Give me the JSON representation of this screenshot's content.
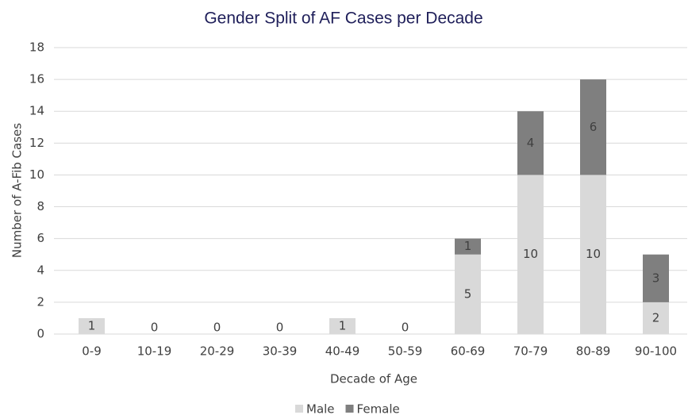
{
  "chart_data": {
    "type": "stacked_bar",
    "title": "Gender Split of AF Cases per Decade",
    "x_label": "Decade of Age",
    "y_label": "Number of A-Fib Cases",
    "categories": [
      "0-9",
      "10-19",
      "20-29",
      "30-39",
      "40-49",
      "50-59",
      "60-69",
      "70-79",
      "80-89",
      "90-100"
    ],
    "series": [
      {
        "name": "Male",
        "color": "#d9d9d9",
        "values": [
          1,
          0,
          0,
          0,
          1,
          0,
          5,
          10,
          10,
          2
        ]
      },
      {
        "name": "Female",
        "color": "#7f7f7f",
        "values": [
          null,
          null,
          null,
          null,
          null,
          null,
          1,
          4,
          6,
          3
        ]
      }
    ],
    "ylim": [
      0,
      18
    ],
    "yticks": [
      0,
      2,
      4,
      6,
      8,
      10,
      12,
      14,
      16,
      18
    ],
    "grid": true,
    "legend": "bottom"
  }
}
